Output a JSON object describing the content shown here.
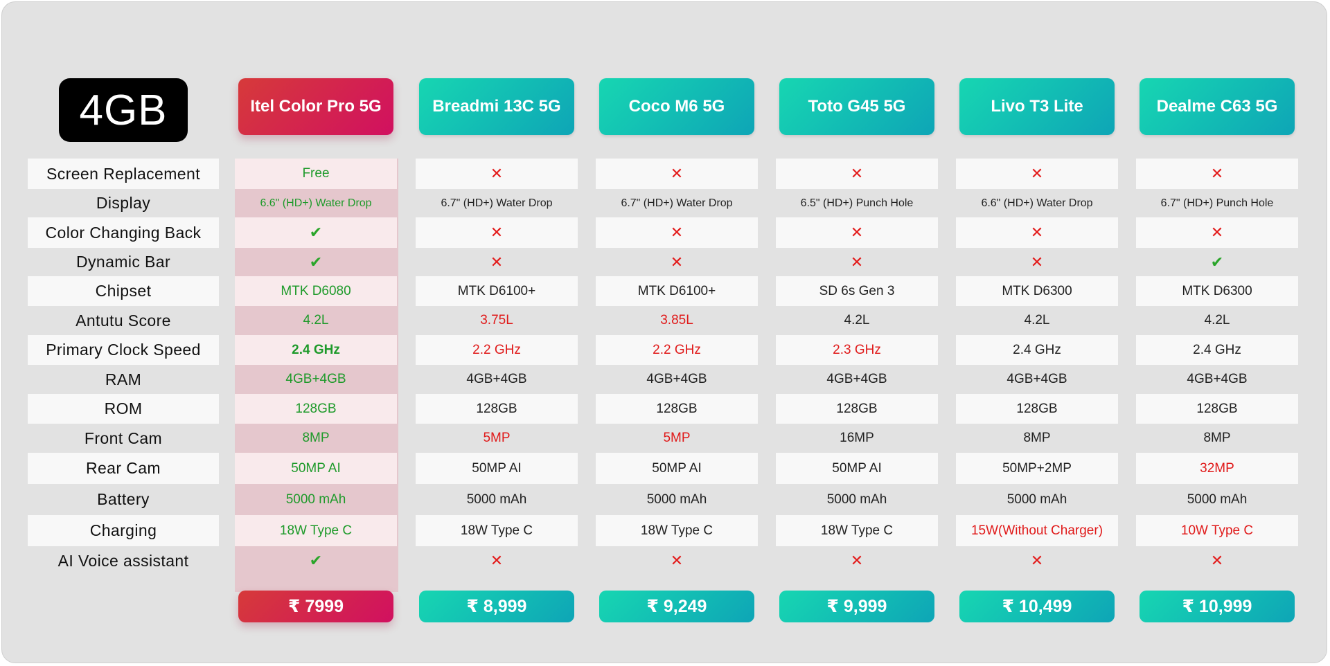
{
  "badge": "4GB",
  "phones": [
    {
      "name": "Itel Color Pro 5G",
      "price": "₹ 7999"
    },
    {
      "name": "Breadmi 13C 5G",
      "price": "₹ 8,999"
    },
    {
      "name": "Coco M6 5G",
      "price": "₹ 9,249"
    },
    {
      "name": "Toto G45 5G",
      "price": "₹ 9,999"
    },
    {
      "name": "Livo T3 Lite",
      "price": "₹ 10,499"
    },
    {
      "name": "Dealme C63 5G",
      "price": "₹ 10,999"
    }
  ],
  "rows": [
    {
      "label": "Screen Replacement",
      "cells": [
        {
          "text": "Free",
          "style": "green"
        },
        {
          "icon": "cross-icon",
          "text": "✕"
        },
        {
          "icon": "cross-icon",
          "text": "✕"
        },
        {
          "icon": "cross-icon",
          "text": "✕"
        },
        {
          "icon": "cross-icon",
          "text": "✕"
        },
        {
          "icon": "cross-icon",
          "text": "✕"
        }
      ]
    },
    {
      "label": "Display",
      "cells": [
        {
          "text": "6.6\" (HD+)  Water Drop",
          "style": "green small"
        },
        {
          "text": "6.7\" (HD+)  Water Drop",
          "style": "small"
        },
        {
          "text": "6.7\" (HD+)  Water Drop",
          "style": "small"
        },
        {
          "text": "6.5\" (HD+)  Punch Hole",
          "style": "small"
        },
        {
          "text": "6.6\" (HD+) Water Drop",
          "style": "small"
        },
        {
          "text": "6.7\" (HD+)  Punch Hole",
          "style": "small"
        }
      ]
    },
    {
      "label": "Color Changing Back",
      "cells": [
        {
          "icon": "check-icon",
          "text": "✔"
        },
        {
          "icon": "cross-icon",
          "text": "✕"
        },
        {
          "icon": "cross-icon",
          "text": "✕"
        },
        {
          "icon": "cross-icon",
          "text": "✕"
        },
        {
          "icon": "cross-icon",
          "text": "✕"
        },
        {
          "icon": "cross-icon",
          "text": "✕"
        }
      ]
    },
    {
      "label": "Dynamic Bar",
      "cells": [
        {
          "icon": "check-icon",
          "text": "✔"
        },
        {
          "icon": "cross-icon",
          "text": "✕"
        },
        {
          "icon": "cross-icon",
          "text": "✕"
        },
        {
          "icon": "cross-icon",
          "text": "✕"
        },
        {
          "icon": "cross-icon",
          "text": "✕"
        },
        {
          "icon": "check-icon",
          "text": "✔"
        }
      ]
    },
    {
      "label": "Chipset",
      "cells": [
        {
          "text": "MTK D6080",
          "style": "green"
        },
        {
          "text": "MTK D6100+"
        },
        {
          "text": "MTK D6100+"
        },
        {
          "text": "SD 6s Gen 3"
        },
        {
          "text": "MTK D6300"
        },
        {
          "text": "MTK D6300"
        }
      ]
    },
    {
      "label": "Antutu Score",
      "cells": [
        {
          "text": "4.2L",
          "style": "green"
        },
        {
          "text": "3.75L",
          "style": "red"
        },
        {
          "text": "3.85L",
          "style": "red"
        },
        {
          "text": "4.2L"
        },
        {
          "text": "4.2L"
        },
        {
          "text": "4.2L"
        }
      ]
    },
    {
      "label": "Primary Clock Speed",
      "cells": [
        {
          "text": "2.4 GHz",
          "style": "green bold"
        },
        {
          "text": "2.2 GHz",
          "style": "red"
        },
        {
          "text": "2.2 GHz",
          "style": "red"
        },
        {
          "text": "2.3 GHz",
          "style": "red"
        },
        {
          "text": "2.4 GHz"
        },
        {
          "text": "2.4 GHz"
        }
      ]
    },
    {
      "label": "RAM",
      "cells": [
        {
          "text": "4GB+4GB",
          "style": "green"
        },
        {
          "text": "4GB+4GB"
        },
        {
          "text": "4GB+4GB"
        },
        {
          "text": "4GB+4GB"
        },
        {
          "text": "4GB+4GB"
        },
        {
          "text": "4GB+4GB"
        }
      ]
    },
    {
      "label": "ROM",
      "cells": [
        {
          "text": "128GB",
          "style": "green"
        },
        {
          "text": "128GB"
        },
        {
          "text": "128GB"
        },
        {
          "text": "128GB"
        },
        {
          "text": "128GB"
        },
        {
          "text": "128GB"
        }
      ]
    },
    {
      "label": "Front Cam",
      "cells": [
        {
          "text": "8MP",
          "style": "green"
        },
        {
          "text": "5MP",
          "style": "red"
        },
        {
          "text": "5MP",
          "style": "red"
        },
        {
          "text": "16MP"
        },
        {
          "text": "8MP"
        },
        {
          "text": "8MP"
        }
      ]
    },
    {
      "label": "Rear Cam",
      "cells": [
        {
          "text": "50MP AI",
          "style": "green"
        },
        {
          "text": "50MP AI"
        },
        {
          "text": "50MP AI"
        },
        {
          "text": "50MP AI"
        },
        {
          "text": "50MP+2MP"
        },
        {
          "text": "32MP",
          "style": "red"
        }
      ]
    },
    {
      "label": "Battery",
      "cells": [
        {
          "text": "5000 mAh",
          "style": "green"
        },
        {
          "text": "5000 mAh"
        },
        {
          "text": "5000 mAh"
        },
        {
          "text": "5000 mAh"
        },
        {
          "text": "5000 mAh"
        },
        {
          "text": "5000 mAh"
        }
      ]
    },
    {
      "label": "Charging",
      "cells": [
        {
          "text": "18W Type C",
          "style": "green"
        },
        {
          "text": "18W Type C"
        },
        {
          "text": "18W Type C"
        },
        {
          "text": "18W Type C"
        },
        {
          "text": "15W(Without Charger)",
          "style": "red"
        },
        {
          "text": "10W Type C",
          "style": "red"
        }
      ]
    },
    {
      "label": "AI Voice assistant",
      "cells": [
        {
          "icon": "check-icon",
          "text": "✔"
        },
        {
          "icon": "cross-icon",
          "text": "✕"
        },
        {
          "icon": "cross-icon",
          "text": "✕"
        },
        {
          "icon": "cross-icon",
          "text": "✕"
        },
        {
          "icon": "cross-icon",
          "text": "✕"
        },
        {
          "icon": "cross-icon",
          "text": "✕"
        }
      ]
    }
  ]
}
